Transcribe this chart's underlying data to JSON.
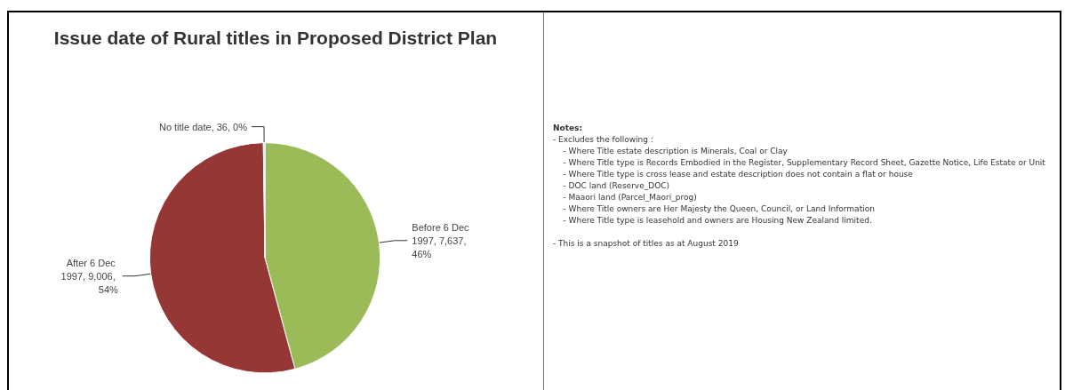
{
  "chart_data": {
    "type": "pie",
    "title": "Issue date of Rural titles in Proposed District Plan",
    "categories": [
      "Before 6 Dec 1997",
      "After 6 Dec 1997",
      "No title date"
    ],
    "values": [
      7637,
      9006,
      36
    ],
    "colors": [
      "#9bbb59",
      "#953735",
      "#dbe5c4"
    ],
    "value_labels": [
      "7,637, 46%",
      "9,006, 54%",
      "36, 0%"
    ],
    "legend": false,
    "annotations": [
      "Notes:",
      "- Excludes the following :",
      "    - Where Title estate description is Minerals, Coal or Clay",
      "    - Where Title type is Records Embodied in the Register, Supplementary Record Sheet, Gazette Notice, Life Estate or Unit",
      "    - Where Title type is cross lease and estate description does not contain a flat or house",
      "    - DOC land (Reserve_DOC)",
      "    - Maaori land (Parcel_Maori_prog)",
      "    - Where Title owners are Her Majesty the Queen, Council, or Land Information",
      "    - Where Title type is leasehold and owners are Housing New Zealand limited.",
      "- This is a snapshot of titles as at August 2019"
    ]
  }
}
